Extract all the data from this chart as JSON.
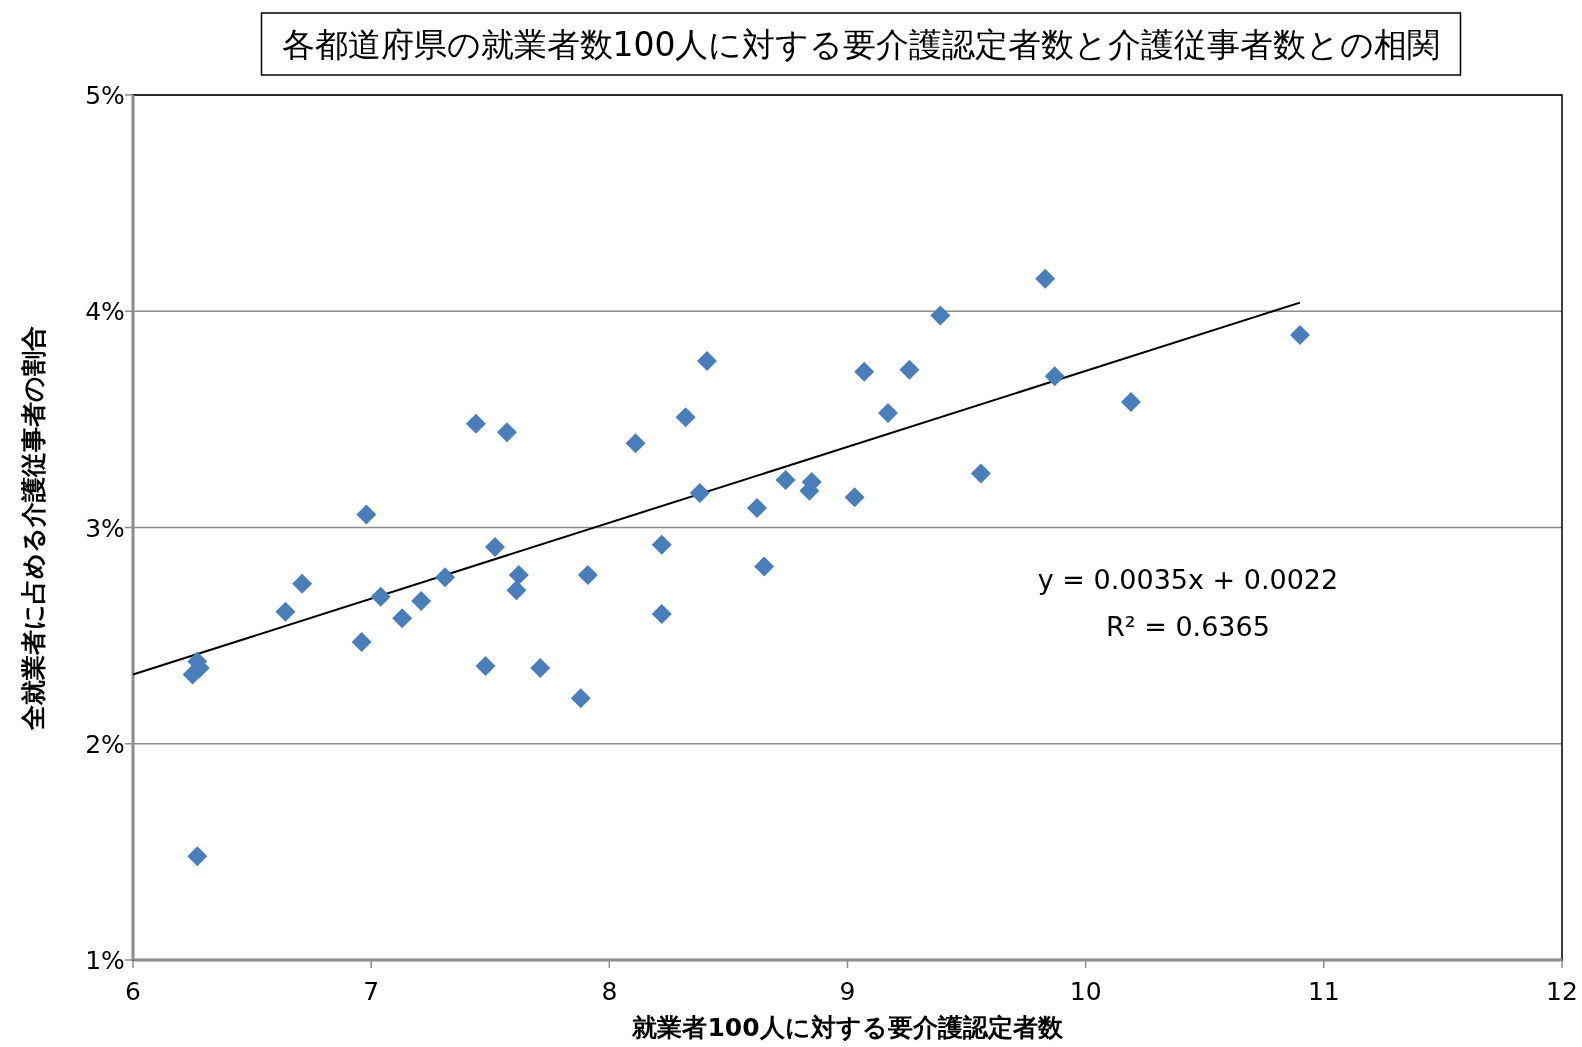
{
  "chart_data": {
    "type": "scatter",
    "title": "各都道府県の就業者数100人に対する要介護認定者数と介護従事者数との相関",
    "xlabel": "就業者100人に対する要介護認定者数",
    "ylabel": "全就業者に占める介護従事者の割合",
    "xlim": [
      6,
      12
    ],
    "xticks": [
      6,
      7,
      8,
      9,
      10,
      11,
      12
    ],
    "ylim": [
      1,
      5
    ],
    "yticks": [
      {
        "value": 1,
        "label": "1%"
      },
      {
        "value": 2,
        "label": "2%"
      },
      {
        "value": 3,
        "label": "3%"
      },
      {
        "value": 4,
        "label": "4%"
      },
      {
        "value": 5,
        "label": "5%"
      }
    ],
    "grid": "y",
    "annotations": [
      "y = 0.0035x + 0.0022",
      "R² = 0.6365"
    ],
    "series": [
      {
        "marker": "diamond",
        "color": "#4a7ebb",
        "x": [
          6.27,
          6.25,
          6.27,
          6.28,
          6.64,
          6.71,
          6.96,
          6.98,
          7.04,
          7.13,
          7.21,
          7.31,
          7.44,
          7.48,
          7.52,
          7.57,
          7.61,
          7.62,
          7.71,
          7.88,
          7.91,
          8.11,
          8.22,
          8.22,
          8.32,
          8.38,
          8.41,
          8.62,
          8.65,
          8.74,
          8.84,
          8.85,
          9.03,
          9.07,
          9.17,
          9.26,
          9.39,
          9.56,
          9.83,
          9.87,
          10.19,
          10.9
        ],
        "values": [
          1.48,
          2.32,
          2.38,
          2.35,
          2.61,
          2.74,
          2.47,
          3.06,
          2.68,
          2.58,
          2.66,
          2.77,
          3.48,
          2.36,
          2.91,
          3.44,
          2.71,
          2.78,
          2.35,
          2.21,
          2.78,
          3.39,
          2.92,
          2.6,
          3.51,
          3.16,
          3.77,
          3.09,
          2.82,
          3.22,
          3.17,
          3.21,
          3.14,
          3.72,
          3.53,
          3.73,
          3.98,
          3.25,
          4.15,
          3.7,
          3.58,
          3.89
        ]
      },
      {
        "type": "line",
        "marker": "none",
        "line_style": "solid",
        "color": "#000000",
        "x": [
          6,
          10.9
        ],
        "values": [
          2.32,
          4.04
        ]
      }
    ]
  }
}
